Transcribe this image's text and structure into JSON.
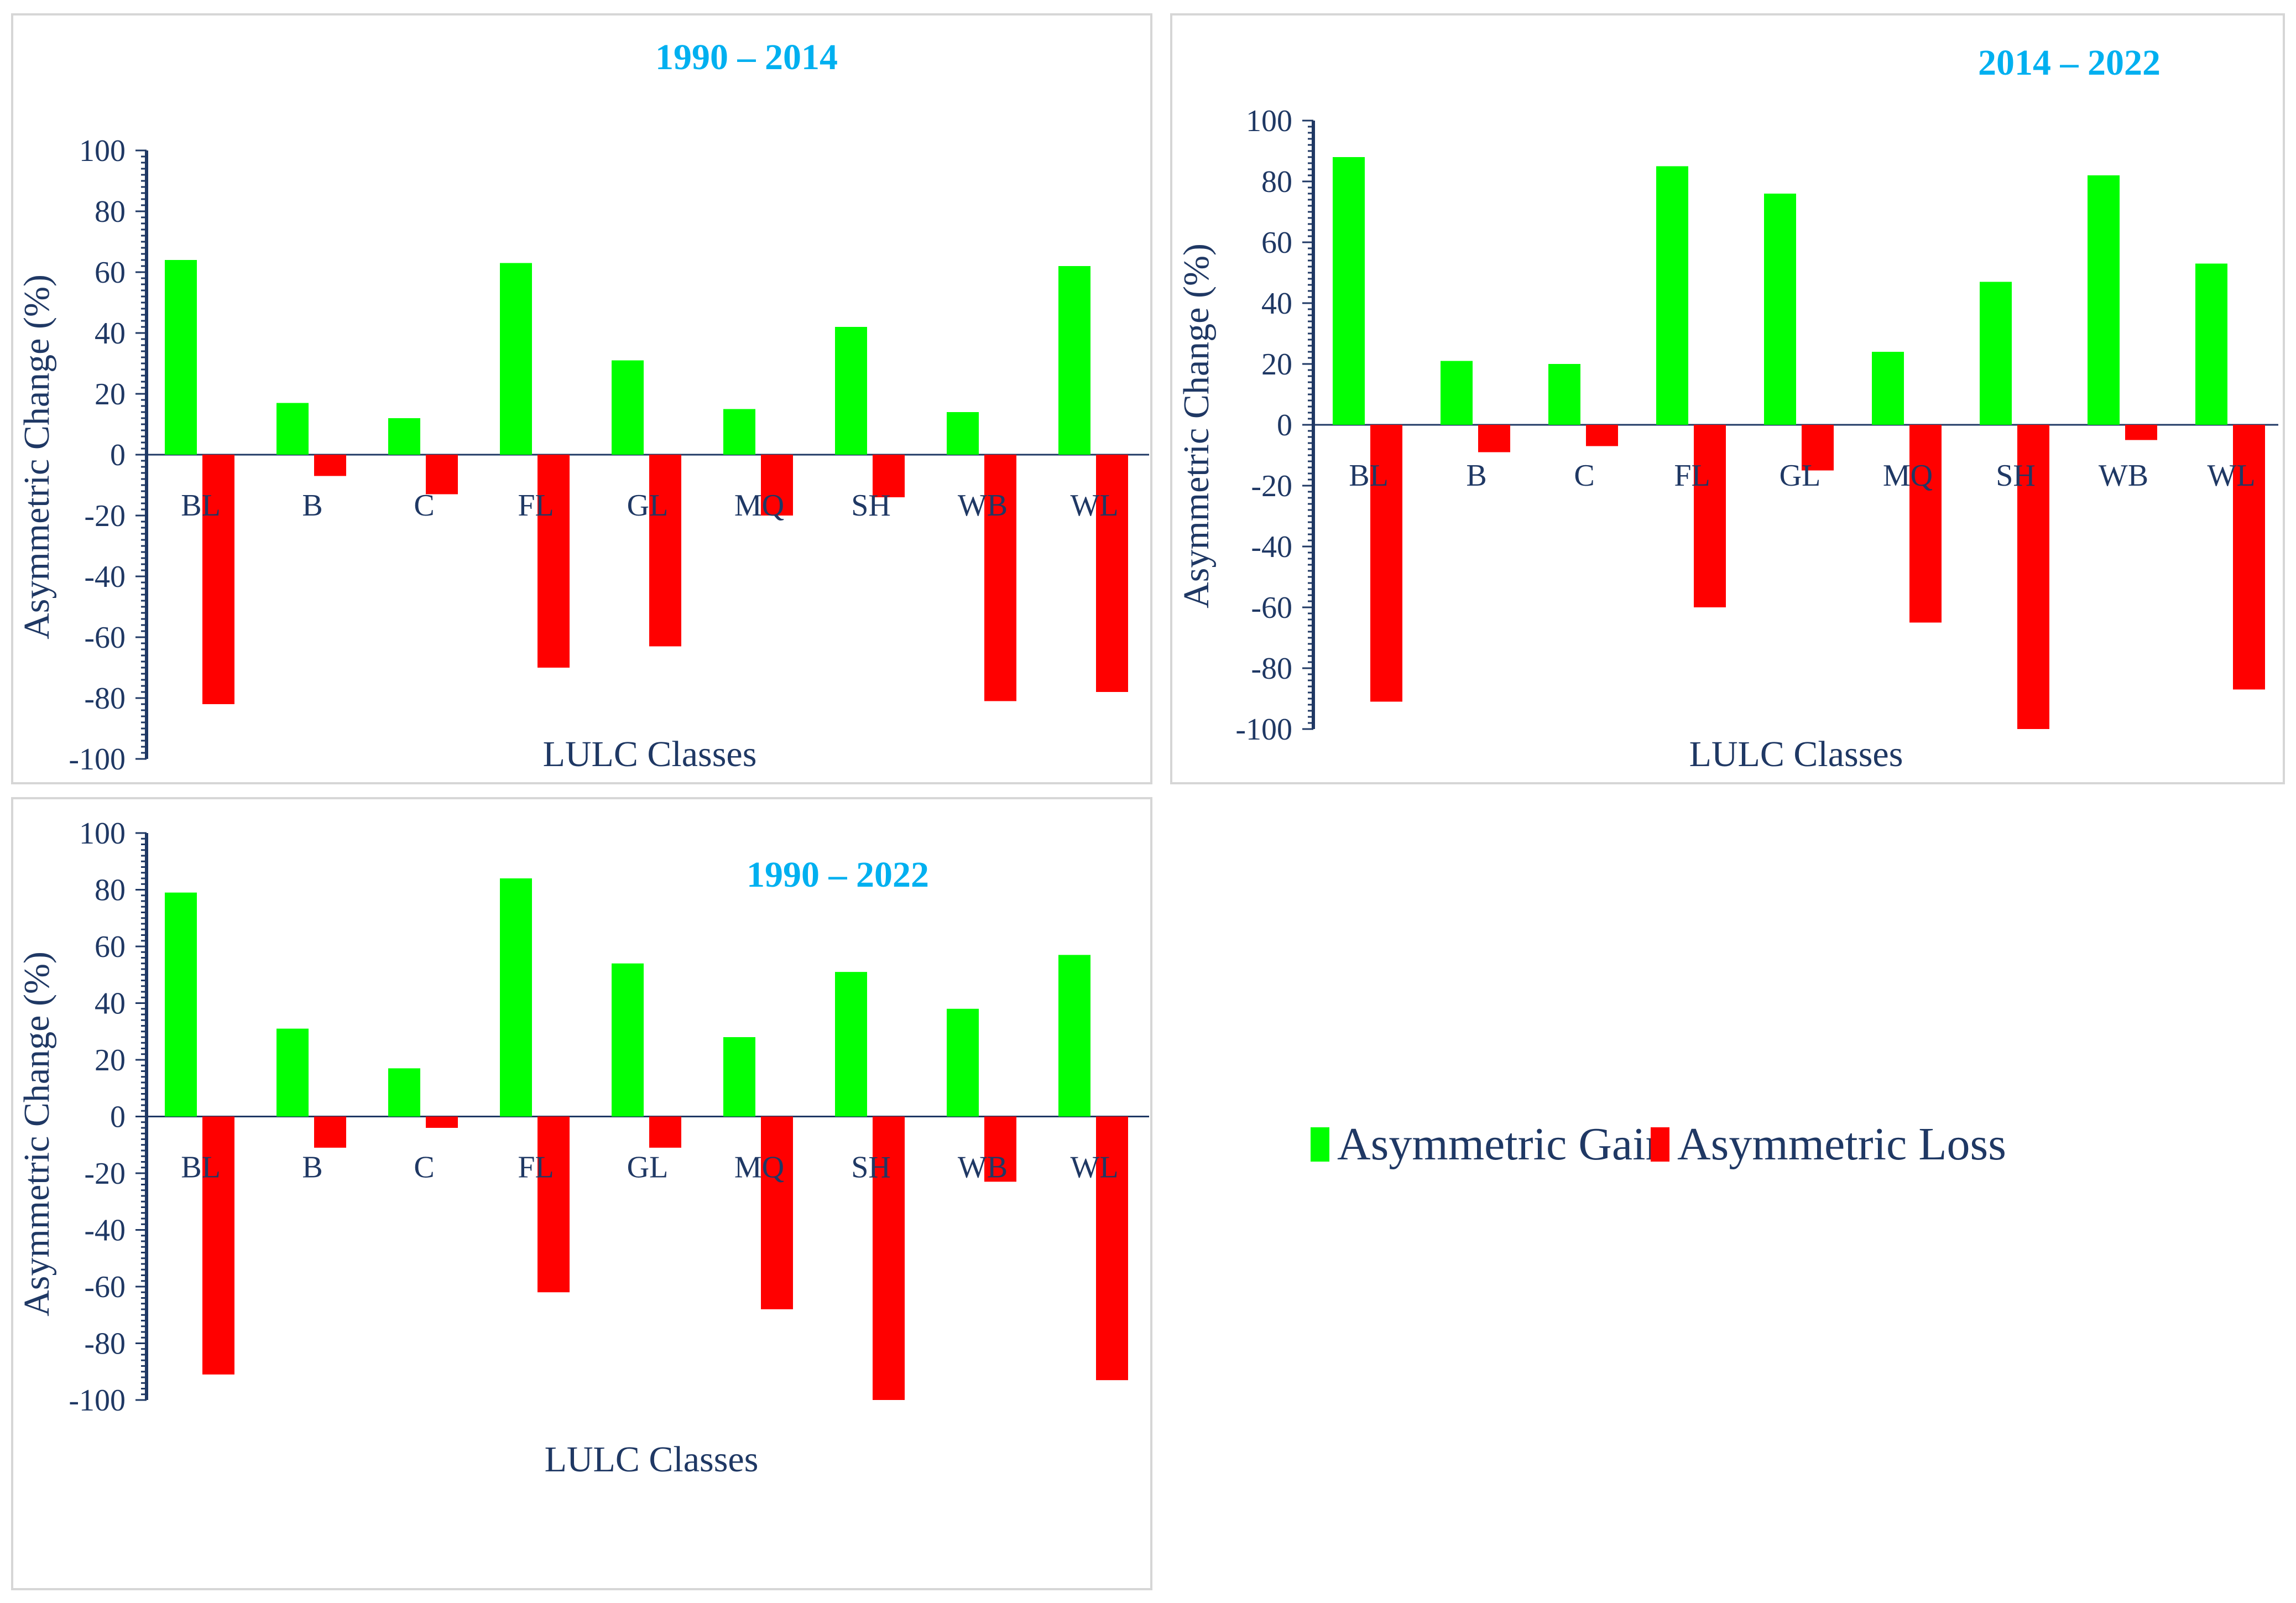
{
  "colors": {
    "gain": "#00ff00",
    "loss": "#ff0000",
    "axis": "#1f3864",
    "title": "#00b0f0"
  },
  "legend": {
    "gain_label": "Asymmetric Gain",
    "loss_label": "Asymmetric Loss",
    "placement": "right"
  },
  "chart_data": [
    {
      "type": "bar",
      "title": "1990 – 2014",
      "xlabel": "LULC Classes",
      "ylabel": "Asymmetric Change (%)",
      "ylim": [
        -100,
        100
      ],
      "yticks": [
        100,
        80,
        60,
        40,
        20,
        0,
        -20,
        -40,
        -60,
        -80,
        -100
      ],
      "categories": [
        "BL",
        "B",
        "C",
        "FL",
        "GL",
        "MQ",
        "SH",
        "WB",
        "WL"
      ],
      "series": [
        {
          "name": "Asymmetric Gain",
          "values": [
            64,
            17,
            12,
            63,
            31,
            15,
            42,
            14,
            62
          ]
        },
        {
          "name": "Asymmetric Loss",
          "values": [
            -82,
            -7,
            -13,
            -70,
            -63,
            -20,
            -14,
            -81,
            -78
          ]
        }
      ]
    },
    {
      "type": "bar",
      "title": "2014 – 2022",
      "xlabel": "LULC Classes",
      "ylabel": "Asymmetric Change (%)",
      "ylim": [
        -100,
        100
      ],
      "yticks": [
        100,
        80,
        60,
        40,
        20,
        0,
        -20,
        -40,
        -60,
        -80,
        -100
      ],
      "categories": [
        "BL",
        "B",
        "C",
        "FL",
        "GL",
        "MQ",
        "SH",
        "WB",
        "WL"
      ],
      "series": [
        {
          "name": "Asymmetric Gain",
          "values": [
            88,
            21,
            20,
            85,
            76,
            24,
            47,
            82,
            53
          ]
        },
        {
          "name": "Asymmetric Loss",
          "values": [
            -91,
            -9,
            -7,
            -60,
            -15,
            -65,
            -100,
            -5,
            -87
          ]
        }
      ]
    },
    {
      "type": "bar",
      "title": "1990 – 2022",
      "xlabel": "LULC Classes",
      "ylabel": "Asymmetric Change (%)",
      "ylim": [
        -100,
        100
      ],
      "yticks": [
        100,
        80,
        60,
        40,
        20,
        0,
        -20,
        -40,
        -60,
        -80,
        -100
      ],
      "categories": [
        "BL",
        "B",
        "C",
        "FL",
        "GL",
        "MQ",
        "SH",
        "WB",
        "WL"
      ],
      "series": [
        {
          "name": "Asymmetric Gain",
          "values": [
            79,
            31,
            17,
            84,
            54,
            28,
            51,
            38,
            57
          ]
        },
        {
          "name": "Asymmetric Loss",
          "values": [
            -91,
            -11,
            -4,
            -62,
            -11,
            -68,
            -100,
            -23,
            -93
          ]
        }
      ]
    }
  ]
}
